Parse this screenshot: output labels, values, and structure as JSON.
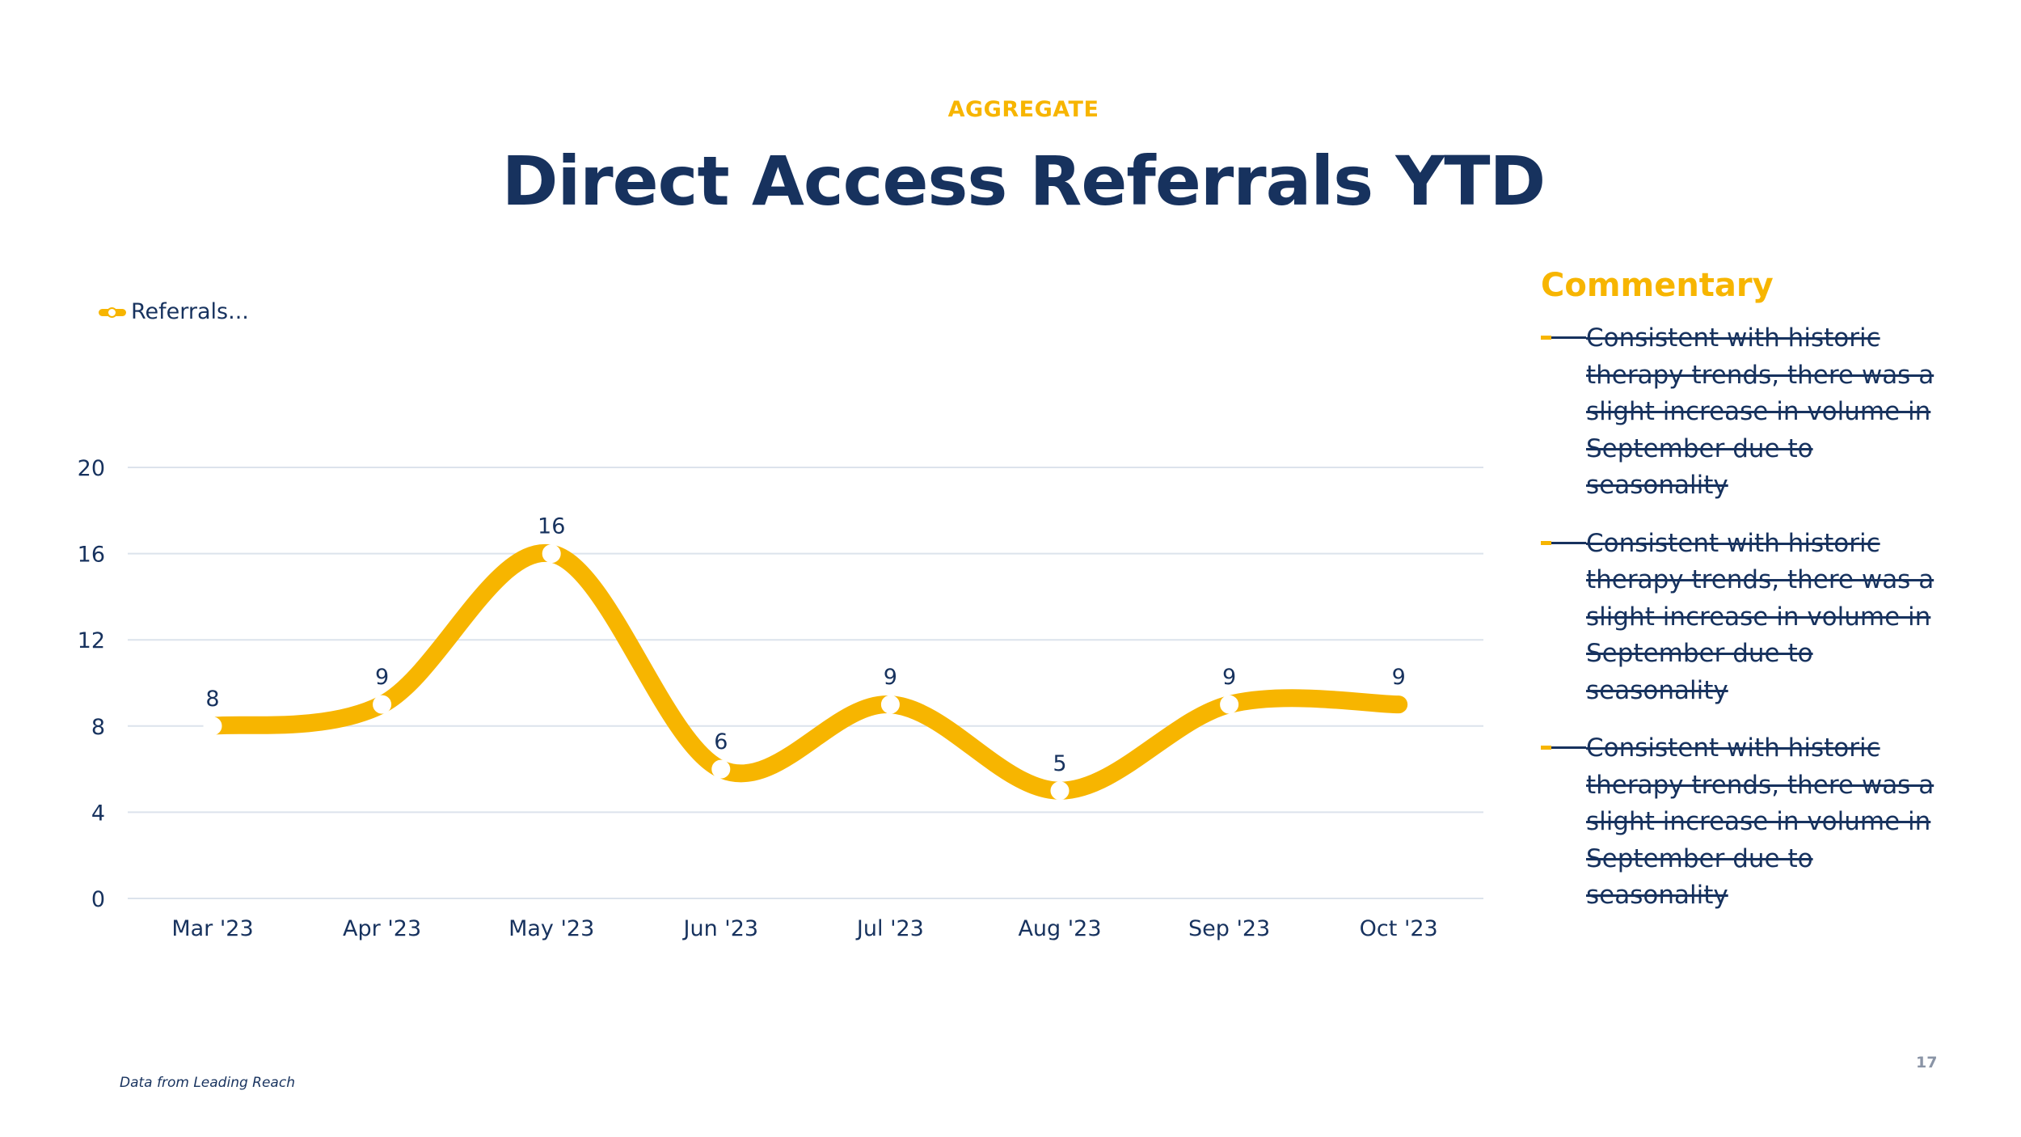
{
  "header": {
    "eyebrow": "AGGREGATE",
    "title": "Direct Access Referrals YTD"
  },
  "legend": {
    "label": "Referrals..."
  },
  "commentary": {
    "heading": "Commentary",
    "bullets": [
      "Consistent with historic therapy trends, there was a slight increase in volume in September due to seasonality",
      "Consistent with historic therapy trends, there was a slight increase in volume in September due to seasonality",
      "Consistent with historic therapy trends, there was a slight increase in volume in September due to seasonality"
    ]
  },
  "footer": {
    "source": "Data from Leading Reach",
    "page_number": "17"
  },
  "colors": {
    "accent": "#f7b500",
    "navy": "#17325e",
    "grid": "#dce3ec",
    "background": "#ffffff"
  },
  "chart_data": {
    "type": "line",
    "smooth": true,
    "categories": [
      "Mar '23",
      "Apr '23",
      "May '23",
      "Jun '23",
      "Jul '23",
      "Aug '23",
      "Sep '23",
      "Oct '23"
    ],
    "series": [
      {
        "name": "Referrals...",
        "values": [
          8,
          9,
          16,
          6,
          9,
          5,
          9,
          9
        ],
        "color": "#f7b500"
      }
    ],
    "data_labels": true,
    "ylim": [
      0,
      20
    ],
    "yticks": [
      0,
      4,
      8,
      12,
      16,
      20
    ],
    "grid": true,
    "legend_position": "top-left",
    "title": "",
    "xlabel": "",
    "ylabel": ""
  }
}
